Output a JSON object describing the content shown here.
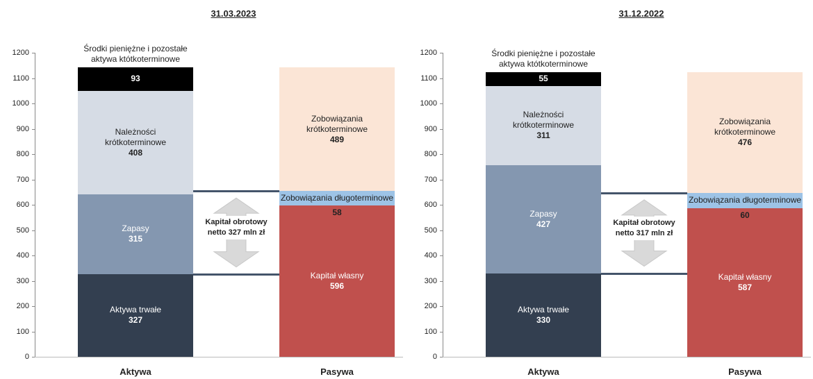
{
  "chart_data": [
    {
      "type": "bar",
      "stacked": true,
      "title": "31.03.2023",
      "categories": [
        "Aktywa",
        "Pasywa"
      ],
      "ylim": [
        0,
        1200
      ],
      "yticks": [
        0,
        100,
        200,
        300,
        400,
        500,
        600,
        700,
        800,
        900,
        1000,
        1100,
        1200
      ],
      "series": [
        {
          "name": "Aktywa trwałe",
          "color": "#333f50",
          "values": [
            327,
            null
          ]
        },
        {
          "name": "Zapasy",
          "color": "#8497b0",
          "values": [
            315,
            null
          ]
        },
        {
          "name": "Należności krótkoterminowe",
          "color": "#d6dce5",
          "values": [
            408,
            null
          ]
        },
        {
          "name": "Środki pieniężne i pozostałe aktywa któtkoterminowe",
          "color": "#000000",
          "values": [
            93,
            null
          ]
        },
        {
          "name": "Kapitał własny",
          "color": "#c0504d",
          "values": [
            null,
            596
          ]
        },
        {
          "name": "Zobowiązania długoterminowe",
          "color": "#9dc3e6",
          "values": [
            null,
            58
          ]
        },
        {
          "name": "Zobowiązania krótkoterminowe",
          "color": "#fbe5d6",
          "values": [
            null,
            489
          ]
        }
      ],
      "annotation": "Kapitał obrotowy netto 327 mln zł"
    },
    {
      "type": "bar",
      "stacked": true,
      "title": "31.12.2022",
      "categories": [
        "Aktywa",
        "Pasywa"
      ],
      "ylim": [
        0,
        1200
      ],
      "yticks": [
        0,
        100,
        200,
        300,
        400,
        500,
        600,
        700,
        800,
        900,
        1000,
        1100,
        1200
      ],
      "series": [
        {
          "name": "Aktywa trwałe",
          "color": "#333f50",
          "values": [
            330,
            null
          ]
        },
        {
          "name": "Zapasy",
          "color": "#8497b0",
          "values": [
            427,
            null
          ]
        },
        {
          "name": "Należności krótkoterminowe",
          "color": "#d6dce5",
          "values": [
            311,
            null
          ]
        },
        {
          "name": "Środki pieniężne i pozostałe aktywa któtkoterminowe",
          "color": "#000000",
          "values": [
            55,
            null
          ]
        },
        {
          "name": "Kapitał własny",
          "color": "#c0504d",
          "values": [
            null,
            587
          ]
        },
        {
          "name": "Zobowiązania długoterminowe",
          "color": "#9dc3e6",
          "values": [
            null,
            60
          ]
        },
        {
          "name": "Zobowiązania krótkoterminowe",
          "color": "#fbe5d6",
          "values": [
            null,
            476
          ]
        }
      ],
      "annotation": "Kapitał obrotowy netto 317 mln zł"
    }
  ]
}
